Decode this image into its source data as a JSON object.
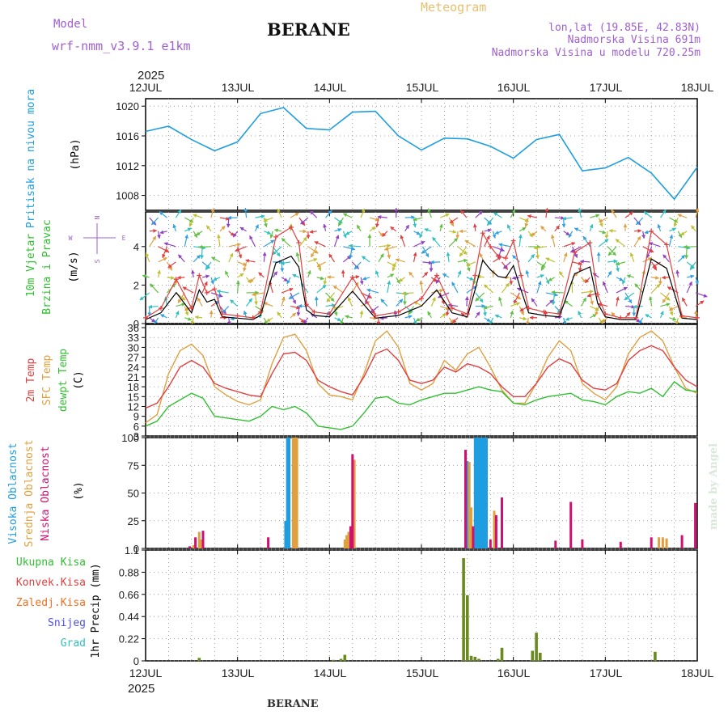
{
  "header": {
    "station": "BERANE",
    "station_footer": "BERANE",
    "product": "Meteogram",
    "model_label": "Model",
    "model_name": "wrf-nmm_v3.9.1 e1km",
    "coords": "lon,lat (19.85E, 42.83N)",
    "elevation": "Nadmorska Visina 691m",
    "model_elevation": "Nadmorska Visina u modelu 720.25m",
    "credit": "made by Angel"
  },
  "colors": {
    "pressure": "#1e9ee0",
    "t2m": "#e04040",
    "sfc": "#e0a040",
    "dew": "#30c030",
    "high_cloud": "#1e9ee0",
    "mid_cloud": "#e0a040",
    "low_cloud": "#d01070",
    "total_precip": "#30c030",
    "conv_precip": "#e04040",
    "snow": "#5050e0",
    "hail": "#30c0c0",
    "frozen": "#f07020"
  },
  "chart_data": [
    {
      "type": "line",
      "panel": "pressure",
      "ylabel": [
        "Pritisak na nivou mora",
        "(hPa)"
      ],
      "ylim": [
        1006,
        1021
      ],
      "yticks": [
        1008,
        1012,
        1016,
        1020
      ],
      "x_days": [
        "12JUL",
        "13JUL",
        "14JUL",
        "15JUL",
        "16JUL",
        "17JUL",
        "18JUL"
      ],
      "year": "2025",
      "x_hours": [
        0,
        6,
        12,
        18,
        24,
        30,
        36,
        42,
        48,
        54,
        60,
        66,
        72,
        78,
        84,
        90,
        96,
        102,
        108,
        114,
        120,
        126,
        132,
        138,
        144
      ],
      "series": [
        {
          "name": "pressure",
          "values": [
            1016.6,
            1017.3,
            1015.5,
            1014.0,
            1015.2,
            1019.0,
            1019.8,
            1017.0,
            1016.8,
            1019.2,
            1019.3,
            1016.0,
            1014.1,
            1015.7,
            1015.6,
            1014.6,
            1013.0,
            1015.5,
            1016.2,
            1011.3,
            1011.7,
            1013.1,
            1011.0,
            1007.5,
            1011.8
          ]
        }
      ]
    },
    {
      "type": "line",
      "panel": "wind",
      "ylabel": [
        "10m Vjetar",
        "Brzina i Pravac",
        "(m/s)"
      ],
      "compass": [
        "N",
        "W",
        "E",
        "S"
      ],
      "ylim": [
        0,
        5.8
      ],
      "yticks": [
        0,
        2,
        4
      ],
      "x_hours": [
        0,
        4,
        8,
        12,
        14,
        16,
        18,
        20,
        24,
        28,
        30,
        34,
        38,
        40,
        42,
        44,
        48,
        54,
        60,
        66,
        72,
        76,
        80,
        84,
        86,
        88,
        90,
        92,
        94,
        96,
        98,
        100,
        104,
        108,
        112,
        116,
        118,
        120,
        124,
        128,
        132,
        136,
        140,
        144
      ],
      "series": [
        {
          "name": "speed",
          "values": [
            0.3,
            0.8,
            2.3,
            0.8,
            2.5,
            1.6,
            1.8,
            0.5,
            0.4,
            0.3,
            0.6,
            4.5,
            5.0,
            4.2,
            1.0,
            0.6,
            0.5,
            2.4,
            0.4,
            0.6,
            1.3,
            2.5,
            0.8,
            0.5,
            2.5,
            4.7,
            4.0,
            3.5,
            3.4,
            4.3,
            2.5,
            0.8,
            0.6,
            0.5,
            3.7,
            4.2,
            1.5,
            0.5,
            0.3,
            0.3,
            4.8,
            4.1,
            0.4,
            0.3
          ]
        }
      ]
    },
    {
      "type": "line",
      "panel": "temperature",
      "ylabel": [
        "2m Temp",
        "SFC Temp",
        "dewpt Temp",
        "(C)"
      ],
      "ylim": [
        3,
        37
      ],
      "yticks": [
        3,
        6,
        9,
        12,
        15,
        18,
        21,
        24,
        27,
        30,
        33,
        36
      ],
      "x_hours": [
        0,
        3,
        6,
        9,
        12,
        15,
        18,
        21,
        24,
        27,
        30,
        33,
        36,
        39,
        42,
        45,
        48,
        51,
        54,
        57,
        60,
        63,
        66,
        69,
        72,
        75,
        78,
        81,
        84,
        87,
        90,
        93,
        96,
        99,
        102,
        105,
        108,
        111,
        114,
        117,
        120,
        123,
        126,
        129,
        132,
        135,
        138,
        141,
        144
      ],
      "series": [
        {
          "name": "2m Temp",
          "values": [
            11.5,
            13.0,
            18.0,
            24.0,
            26.0,
            24.0,
            19.0,
            17.5,
            16.5,
            15.5,
            15.0,
            22.0,
            28.0,
            28.5,
            26.0,
            20.0,
            18.0,
            16.5,
            15.5,
            21.0,
            28.0,
            29.5,
            26.0,
            20.0,
            19.0,
            20.0,
            24.0,
            22.5,
            25.0,
            24.0,
            22.0,
            18.0,
            15.0,
            15.0,
            19.0,
            24.0,
            26.5,
            25.0,
            20.0,
            17.5,
            17.0,
            19.0,
            26.0,
            29.0,
            30.5,
            29.0,
            24.0,
            20.0,
            18.0
          ]
        },
        {
          "name": "SFC Temp",
          "values": [
            7.0,
            9.5,
            22.0,
            29.0,
            31.0,
            27.5,
            18.0,
            15.5,
            13.5,
            12.5,
            14.0,
            25.0,
            33.0,
            34.0,
            29.0,
            19.0,
            15.5,
            15.0,
            14.0,
            22.0,
            32.0,
            35.0,
            30.0,
            19.0,
            17.0,
            19.0,
            26.0,
            23.0,
            28.0,
            30.0,
            24.0,
            17.0,
            13.0,
            13.0,
            19.0,
            27.0,
            32.0,
            29.0,
            19.0,
            16.0,
            14.0,
            18.0,
            28.0,
            33.0,
            35.0,
            32.0,
            24.0,
            17.5,
            16.0
          ]
        },
        {
          "name": "dewpt Temp",
          "values": [
            6.0,
            7.5,
            12.0,
            14.0,
            16.0,
            14.5,
            9.0,
            8.5,
            8.0,
            7.5,
            9.0,
            12.0,
            11.0,
            12.0,
            10.0,
            6.0,
            5.5,
            5.0,
            6.0,
            10.0,
            14.5,
            15.0,
            13.0,
            12.5,
            14.0,
            15.0,
            16.0,
            16.0,
            17.0,
            18.0,
            17.0,
            16.5,
            13.0,
            12.5,
            14.0,
            15.0,
            15.5,
            16.0,
            14.0,
            13.5,
            12.5,
            15.0,
            16.5,
            16.0,
            17.5,
            15.0,
            19.5,
            17.0,
            16.5
          ]
        }
      ]
    },
    {
      "type": "bar",
      "panel": "cloud",
      "ylabel": [
        "Visoka Oblacnost",
        "Srednja Oblacnost",
        "Niska Oblacnost",
        "(%)"
      ],
      "ylim": [
        0,
        100
      ],
      "yticks": [
        0,
        25,
        50,
        75,
        100
      ],
      "series": [
        {
          "name": "Visoka Oblacnost",
          "points": [
            [
              36.5,
              25
            ],
            [
              37,
              100
            ],
            [
              37.5,
              100
            ],
            [
              84,
              79
            ],
            [
              86,
              100
            ],
            [
              86.5,
              100
            ],
            [
              87,
              100
            ],
            [
              87.5,
              100
            ],
            [
              88,
              100
            ],
            [
              88.5,
              100
            ],
            [
              89,
              100
            ]
          ]
        },
        {
          "name": "Srednja Oblacnost",
          "points": [
            [
              12.5,
              3
            ],
            [
              14,
              15
            ],
            [
              14.5,
              8
            ],
            [
              38.5,
              100
            ],
            [
              39,
              100
            ],
            [
              39.5,
              100
            ],
            [
              52,
              8
            ],
            [
              52.5,
              12
            ],
            [
              53,
              15
            ],
            [
              54.5,
              80
            ],
            [
              84.5,
              78
            ],
            [
              85,
              37
            ],
            [
              91,
              34
            ],
            [
              134,
              10
            ],
            [
              135,
              10
            ],
            [
              136,
              9
            ]
          ]
        },
        {
          "name": "Niska Oblacnost",
          "points": [
            [
              11.5,
              2
            ],
            [
              13,
              10
            ],
            [
              15,
              16
            ],
            [
              32,
              10
            ],
            [
              53.5,
              20
            ],
            [
              54,
              85
            ],
            [
              83.5,
              89
            ],
            [
              85.5,
              20
            ],
            [
              90,
              8
            ],
            [
              91.5,
              30
            ],
            [
              93,
              46
            ],
            [
              107,
              7
            ],
            [
              111,
              42
            ],
            [
              114,
              8
            ],
            [
              124,
              6
            ],
            [
              132,
              10
            ],
            [
              140,
              12
            ],
            [
              143.5,
              41
            ]
          ]
        }
      ]
    },
    {
      "type": "bar",
      "panel": "precip",
      "ylabel": [
        "1hr Precip (mm)"
      ],
      "legend": [
        "Ukupna Kisa",
        "Konvek.Kisa",
        "Zaledj.Kisa",
        "Snijeg",
        "Grad"
      ],
      "ylim": [
        0,
        1.1
      ],
      "yticks": [
        0,
        0.22,
        0.44,
        0.66,
        0.88,
        1.1
      ],
      "series": [
        {
          "name": "Ukupna Kisa",
          "points": [
            [
              14,
              0.03
            ],
            [
              49,
              0.01
            ],
            [
              51,
              0.02
            ],
            [
              52,
              0.06
            ],
            [
              83,
              1.02
            ],
            [
              84,
              0.65
            ],
            [
              85,
              0.05
            ],
            [
              86,
              0.04
            ],
            [
              87,
              0.02
            ],
            [
              92,
              0.02
            ],
            [
              93,
              0.13
            ],
            [
              101,
              0.1
            ],
            [
              102,
              0.28
            ],
            [
              103,
              0.08
            ],
            [
              133,
              0.09
            ]
          ]
        }
      ]
    }
  ]
}
